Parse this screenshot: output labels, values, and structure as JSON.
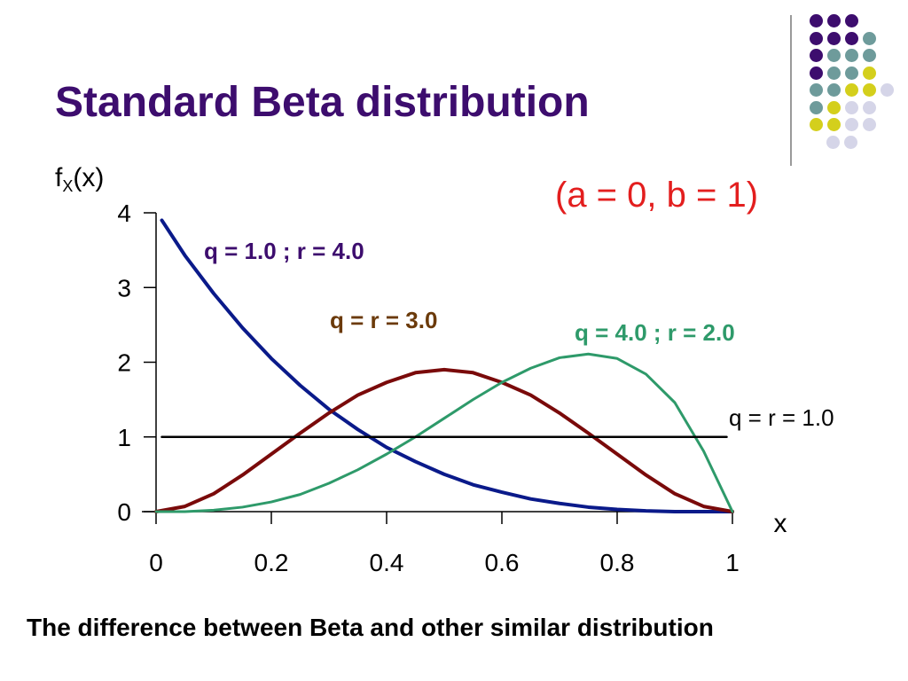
{
  "slide": {
    "title": "Standard Beta distribution",
    "footer": "The difference between Beta and other similar distribution"
  },
  "decoration": {
    "dot_rows": [
      [
        "purple",
        "purple",
        "purple"
      ],
      [
        "purple",
        "purple",
        "purple",
        "teal"
      ],
      [
        "purple",
        "teal",
        "teal",
        "teal"
      ],
      [
        "purple",
        "teal",
        "teal",
        "yellow"
      ],
      [
        "teal",
        "teal",
        "yellow",
        "yellow",
        "lavender"
      ],
      [
        "teal",
        "yellow",
        "lavender",
        "lavender"
      ],
      [
        "yellow",
        "yellow",
        "lavender",
        "lavender"
      ],
      [
        "lavender",
        "lavender"
      ]
    ],
    "colors": {
      "purple": "#3d0d6e",
      "teal": "#6e9b9b",
      "yellow": "#d4cf1c",
      "lavender": "#d5d5e8"
    }
  },
  "chart_data": {
    "type": "line",
    "ylabel_main": "f",
    "ylabel_sub": "X",
    "ylabel_tail": "(x)",
    "xlabel": "x",
    "subtitle": "(a = 0, b = 1)",
    "xlim": [
      0,
      1
    ],
    "ylim": [
      0,
      4
    ],
    "x_ticks": [
      "0",
      "0.2",
      "0.4",
      "0.6",
      "0.8",
      "1"
    ],
    "y_ticks": [
      "0",
      "1",
      "2",
      "3",
      "4"
    ],
    "x": [
      0.0,
      0.05,
      0.1,
      0.15,
      0.2,
      0.25,
      0.3,
      0.35,
      0.4,
      0.45,
      0.5,
      0.55,
      0.6,
      0.65,
      0.7,
      0.75,
      0.8,
      0.85,
      0.9,
      0.95,
      1.0
    ],
    "series": [
      {
        "name": "q = 1.0 ; r = 4.0",
        "color": "#0a1a8a",
        "label_color": "#3d0d6e",
        "values": [
          3.9,
          3.43,
          2.92,
          2.46,
          2.05,
          1.69,
          1.37,
          1.1,
          0.86,
          0.67,
          0.5,
          0.36,
          0.26,
          0.17,
          0.11,
          0.06,
          0.03,
          0.01,
          0.0,
          0.0,
          0.0
        ]
      },
      {
        "name": "q = r = 3.0",
        "color": "#7a0a0a",
        "label_color": "#6b3a0a",
        "values": [
          0.0,
          0.07,
          0.24,
          0.49,
          0.77,
          1.05,
          1.32,
          1.56,
          1.73,
          1.86,
          1.9,
          1.86,
          1.73,
          1.56,
          1.32,
          1.05,
          0.77,
          0.49,
          0.24,
          0.07,
          0.0
        ]
      },
      {
        "name": "q = 4.0 ; r = 2.0",
        "color": "#2e9a6a",
        "label_color": "#2e9a6a",
        "values": [
          0.0,
          0.0,
          0.02,
          0.06,
          0.13,
          0.23,
          0.38,
          0.56,
          0.77,
          1.0,
          1.25,
          1.5,
          1.73,
          1.92,
          2.06,
          2.11,
          2.05,
          1.84,
          1.46,
          0.81,
          0.0
        ]
      },
      {
        "name": "q = r = 1.0",
        "color": "#000000",
        "label_color": "#000000",
        "values": [
          1.0,
          1.0,
          1.0,
          1.0,
          1.0,
          1.0,
          1.0,
          1.0,
          1.0,
          1.0,
          1.0,
          1.0,
          1.0,
          1.0,
          1.0,
          1.0,
          1.0,
          1.0,
          1.0,
          1.0,
          1.0
        ]
      }
    ]
  }
}
